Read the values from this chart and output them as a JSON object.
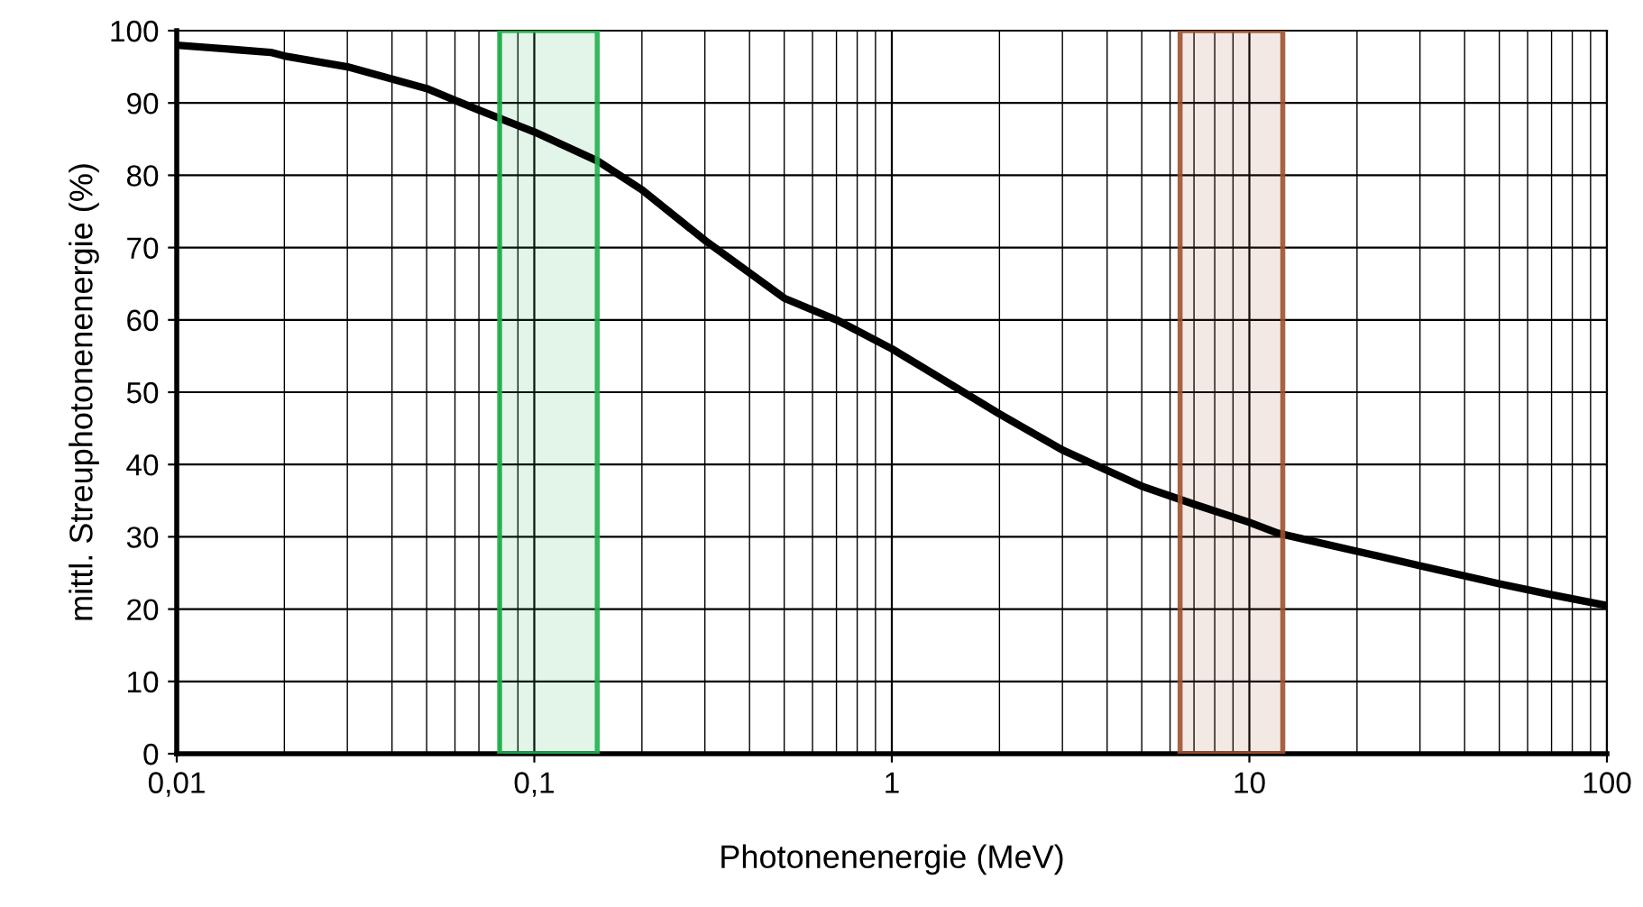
{
  "chart_data": {
    "type": "line",
    "xlabel": "Photonenenergie (MeV)",
    "ylabel": "mittl. Streuphotonenenergie (%)",
    "x": [
      0.01,
      0.0183,
      0.02,
      0.03,
      0.05,
      0.07,
      0.1,
      0.15,
      0.2,
      0.3,
      0.5,
      0.7,
      1,
      2,
      3,
      5,
      7,
      10,
      12,
      20,
      30,
      50,
      70,
      100
    ],
    "series": [
      {
        "color": "#000000",
        "values": [
          98,
          97,
          96.5,
          95,
          92,
          89,
          86,
          82,
          78,
          71,
          63,
          60,
          56,
          47,
          42,
          37,
          34.5,
          32,
          30.5,
          28,
          26,
          23.5,
          22,
          20.5
        ]
      }
    ],
    "xlim": [
      0.01,
      100
    ],
    "ylim": [
      0,
      100
    ],
    "log": "x",
    "xticks": [
      {
        "value": 0.01,
        "label": "0,01"
      },
      {
        "value": 0.1,
        "label": "0,1"
      },
      1,
      10,
      100
    ],
    "yticks": [
      0,
      10,
      20,
      30,
      40,
      50,
      60,
      70,
      80,
      90,
      100
    ],
    "grid": true,
    "marker": "none",
    "line_style": "solid",
    "bands": [
      {
        "axis": "x",
        "from": 0.08,
        "to": 0.15,
        "color": "#22b14c"
      },
      {
        "axis": "x",
        "from": 6.4,
        "to": 12.4,
        "color": "#a0522d"
      }
    ]
  }
}
